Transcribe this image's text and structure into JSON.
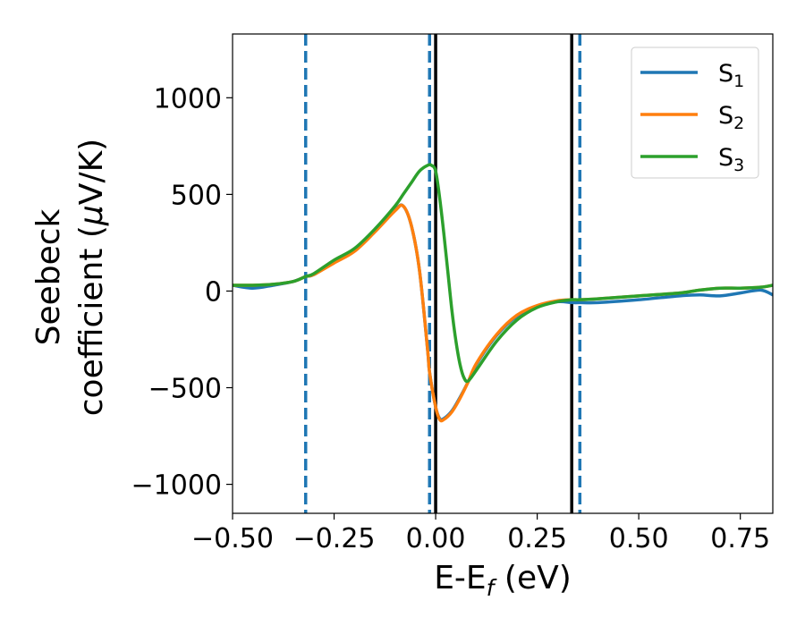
{
  "chart_data": {
    "type": "line",
    "xlabel_main": "E-E",
    "xlabel_sub": "f",
    "xlabel_unit": " (eV)",
    "ylabel_line1": "Seebeck",
    "ylabel_line2_a": "coefficient  (",
    "ylabel_mu": "μ",
    "ylabel_line2_b": "V/K)",
    "xlim": [
      -0.5,
      0.83
    ],
    "ylim": [
      -1150,
      1330
    ],
    "xticks": [
      -0.5,
      -0.25,
      0.0,
      0.25,
      0.5,
      0.75
    ],
    "xtick_labels": [
      "−0.50",
      "−0.25",
      "0.00",
      "0.25",
      "0.50",
      "0.75"
    ],
    "yticks": [
      -1000,
      -500,
      0,
      500,
      1000
    ],
    "ytick_labels": [
      "−1000",
      "−500",
      "0",
      "500",
      "1000"
    ],
    "vlines_dashed": {
      "color": "#1f77b4",
      "x": [
        -0.32,
        -0.015,
        0.355
      ]
    },
    "vlines_solid": {
      "color": "#000000",
      "x": [
        0.0,
        0.335
      ]
    },
    "legend_position": "top-right",
    "series": [
      {
        "name_base": "S",
        "name_sub": "1",
        "color": "#1f77b4",
        "x": [
          -0.5,
          -0.45,
          -0.4,
          -0.35,
          -0.32,
          -0.3,
          -0.25,
          -0.2,
          -0.15,
          -0.1,
          -0.08,
          -0.06,
          -0.04,
          -0.02,
          -0.015,
          0.0,
          0.01,
          0.02,
          0.04,
          0.06,
          0.08,
          0.1,
          0.15,
          0.2,
          0.25,
          0.3,
          0.335,
          0.355,
          0.4,
          0.5,
          0.6,
          0.65,
          0.7,
          0.75,
          0.8,
          0.83
        ],
        "y": [
          30,
          15,
          30,
          50,
          75,
          85,
          150,
          210,
          310,
          420,
          440,
          340,
          110,
          -300,
          -420,
          -600,
          -660,
          -660,
          -620,
          -550,
          -470,
          -380,
          -230,
          -130,
          -80,
          -55,
          -60,
          -60,
          -60,
          -45,
          -25,
          -20,
          -25,
          -10,
          5,
          -20
        ]
      },
      {
        "name_base": "S",
        "name_sub": "2",
        "color": "#ff7f0e",
        "x": [
          -0.5,
          -0.45,
          -0.4,
          -0.35,
          -0.32,
          -0.3,
          -0.25,
          -0.2,
          -0.15,
          -0.1,
          -0.08,
          -0.06,
          -0.04,
          -0.02,
          -0.015,
          0.0,
          0.01,
          0.02,
          0.04,
          0.06,
          0.08,
          0.1,
          0.15,
          0.2,
          0.25,
          0.3,
          0.335,
          0.355,
          0.4,
          0.5,
          0.6,
          0.65,
          0.7,
          0.75,
          0.8,
          0.83
        ],
        "y": [
          30,
          30,
          35,
          50,
          75,
          85,
          145,
          205,
          305,
          415,
          440,
          340,
          110,
          -300,
          -420,
          -600,
          -665,
          -665,
          -625,
          -555,
          -470,
          -375,
          -225,
          -125,
          -75,
          -50,
          -45,
          -45,
          -40,
          -25,
          -10,
          5,
          15,
          15,
          20,
          30
        ]
      },
      {
        "name_base": "S",
        "name_sub": "3",
        "color": "#2ca02c",
        "x": [
          -0.5,
          -0.45,
          -0.4,
          -0.35,
          -0.32,
          -0.3,
          -0.25,
          -0.2,
          -0.15,
          -0.1,
          -0.08,
          -0.06,
          -0.04,
          -0.02,
          -0.01,
          0.0,
          0.01,
          0.02,
          0.03,
          0.04,
          0.05,
          0.06,
          0.07,
          0.08,
          0.1,
          0.15,
          0.2,
          0.25,
          0.3,
          0.335,
          0.355,
          0.4,
          0.5,
          0.6,
          0.65,
          0.7,
          0.75,
          0.8,
          0.83
        ],
        "y": [
          30,
          30,
          35,
          50,
          75,
          90,
          160,
          220,
          320,
          440,
          500,
          560,
          620,
          650,
          650,
          620,
          480,
          300,
          100,
          -100,
          -260,
          -380,
          -450,
          -465,
          -410,
          -260,
          -150,
          -85,
          -55,
          -45,
          -45,
          -40,
          -25,
          -10,
          5,
          15,
          15,
          20,
          30
        ]
      }
    ]
  }
}
